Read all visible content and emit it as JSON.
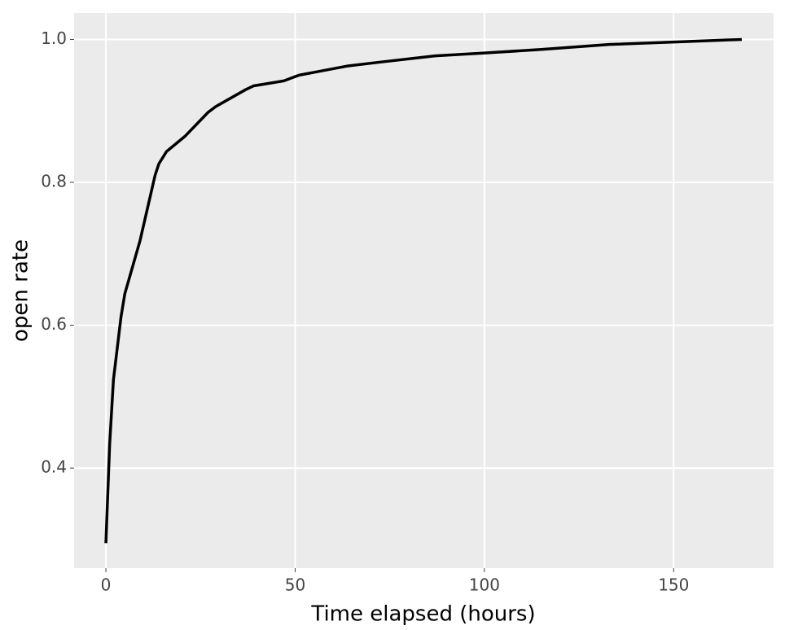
{
  "chart_data": {
    "type": "line",
    "x_label": "Time elapsed (hours)",
    "y_label": "open rate",
    "x": [
      0,
      1,
      2,
      4,
      5,
      9,
      13,
      14,
      16,
      21,
      27,
      29,
      37,
      39,
      47,
      51,
      64,
      72,
      87,
      100,
      115,
      133,
      168
    ],
    "values": [
      0.295,
      0.434,
      0.524,
      0.612,
      0.644,
      0.718,
      0.81,
      0.826,
      0.843,
      0.865,
      0.898,
      0.906,
      0.93,
      0.935,
      0.942,
      0.95,
      0.963,
      0.968,
      0.977,
      0.981,
      0.986,
      0.993,
      1.0
    ],
    "color": "#000000",
    "xlim": [
      -8.4,
      176.4
    ],
    "ylim": [
      0.26,
      1.037
    ],
    "xticks": [
      0,
      50,
      100,
      150
    ],
    "yticks": [
      0.4,
      0.6,
      0.8,
      {
        "value": 1,
        "label": "1.0"
      }
    ],
    "grid": true
  }
}
